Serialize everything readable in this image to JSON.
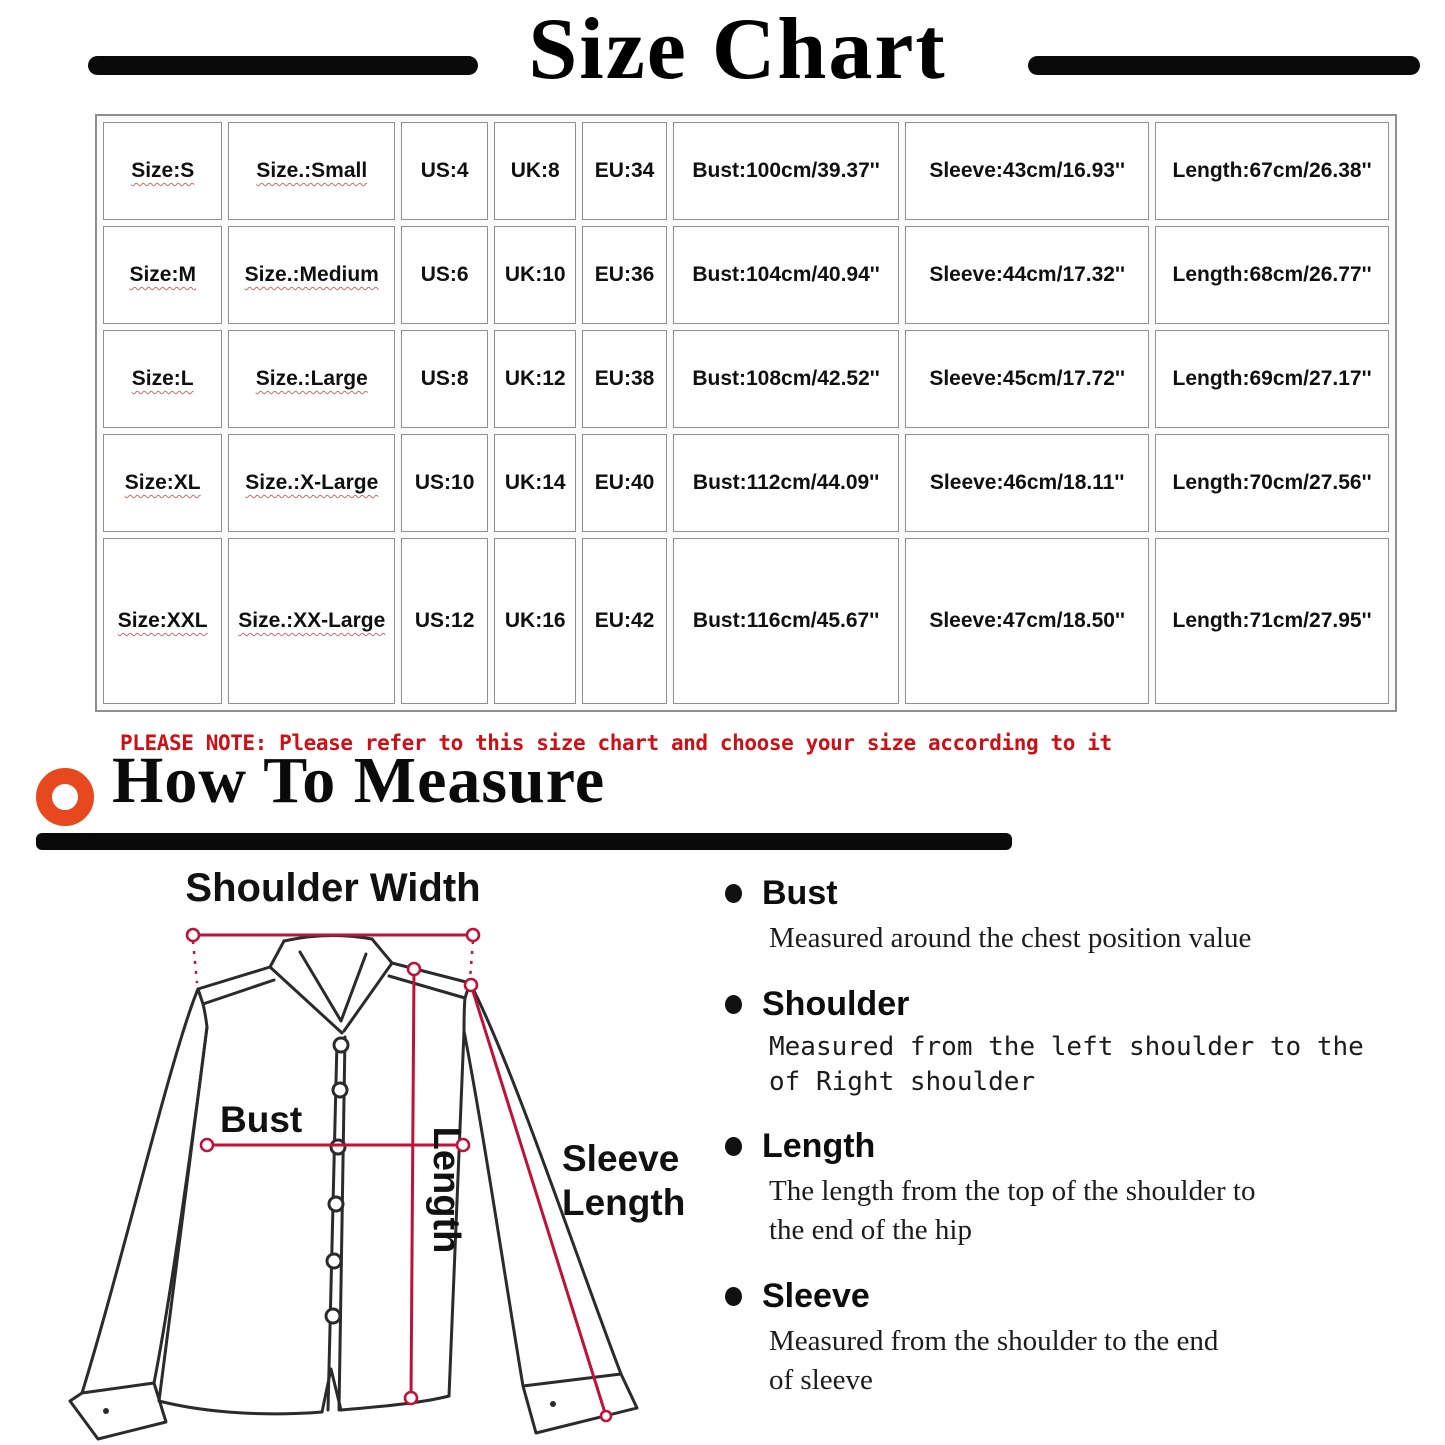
{
  "title": "Size Chart",
  "note": "PLEASE NOTE: Please refer to this size chart and choose your size according to it",
  "how_to_measure": {
    "title": "How To Measure"
  },
  "size_table": {
    "column_names": [
      "size",
      "size-name",
      "us",
      "uk",
      "eu",
      "bust",
      "sleeve",
      "length"
    ],
    "rows": [
      [
        "Size:S",
        "Size.:Small",
        "US:4",
        "UK:8",
        "EU:34",
        "Bust:100cm/39.37''",
        "Sleeve:43cm/16.93''",
        "Length:67cm/26.38''"
      ],
      [
        "Size:M",
        "Size.:Medium",
        "US:6",
        "UK:10",
        "EU:36",
        "Bust:104cm/40.94''",
        "Sleeve:44cm/17.32''",
        "Length:68cm/26.77''"
      ],
      [
        "Size:L",
        "Size.:Large",
        "US:8",
        "UK:12",
        "EU:38",
        "Bust:108cm/42.52''",
        "Sleeve:45cm/17.72''",
        "Length:69cm/27.17''"
      ],
      [
        "Size:XL",
        "Size.:X-Large",
        "US:10",
        "UK:14",
        "EU:40",
        "Bust:112cm/44.09''",
        "Sleeve:46cm/18.11''",
        "Length:70cm/27.56''"
      ],
      [
        "Size:XXL",
        "Size.:XX-Large",
        "US:12",
        "UK:16",
        "EU:42",
        "Bust:116cm/45.67''",
        "Sleeve:47cm/18.50''",
        "Length:71cm/27.95''"
      ]
    ]
  },
  "diagram": {
    "shoulder_width_label": "Shoulder Width",
    "bust_label": "Bust",
    "length_label": "Length",
    "sleeve_label_line1": "Sleeve",
    "sleeve_label_line2": "Length"
  },
  "measure_guide": [
    {
      "term": "Bust",
      "style": "serif",
      "lines": [
        "Measured around the chest position value"
      ]
    },
    {
      "term": "Shoulder",
      "style": "mono",
      "lines": [
        "Measured from the left shoulder to the",
        "of Right shoulder"
      ]
    },
    {
      "term": "Length",
      "style": "serif",
      "lines": [
        "The length from the top of the shoulder to",
        "the end of the hip"
      ]
    },
    {
      "term": "Sleeve",
      "style": "serif",
      "lines": [
        "Measured from the shoulder to the end",
        "of sleeve"
      ]
    }
  ],
  "colors": {
    "measure_line_red": "#bf1238",
    "ring_orange": "#e8481e",
    "note_red": "#cc1016",
    "bar_black": "#0a0a0a"
  }
}
